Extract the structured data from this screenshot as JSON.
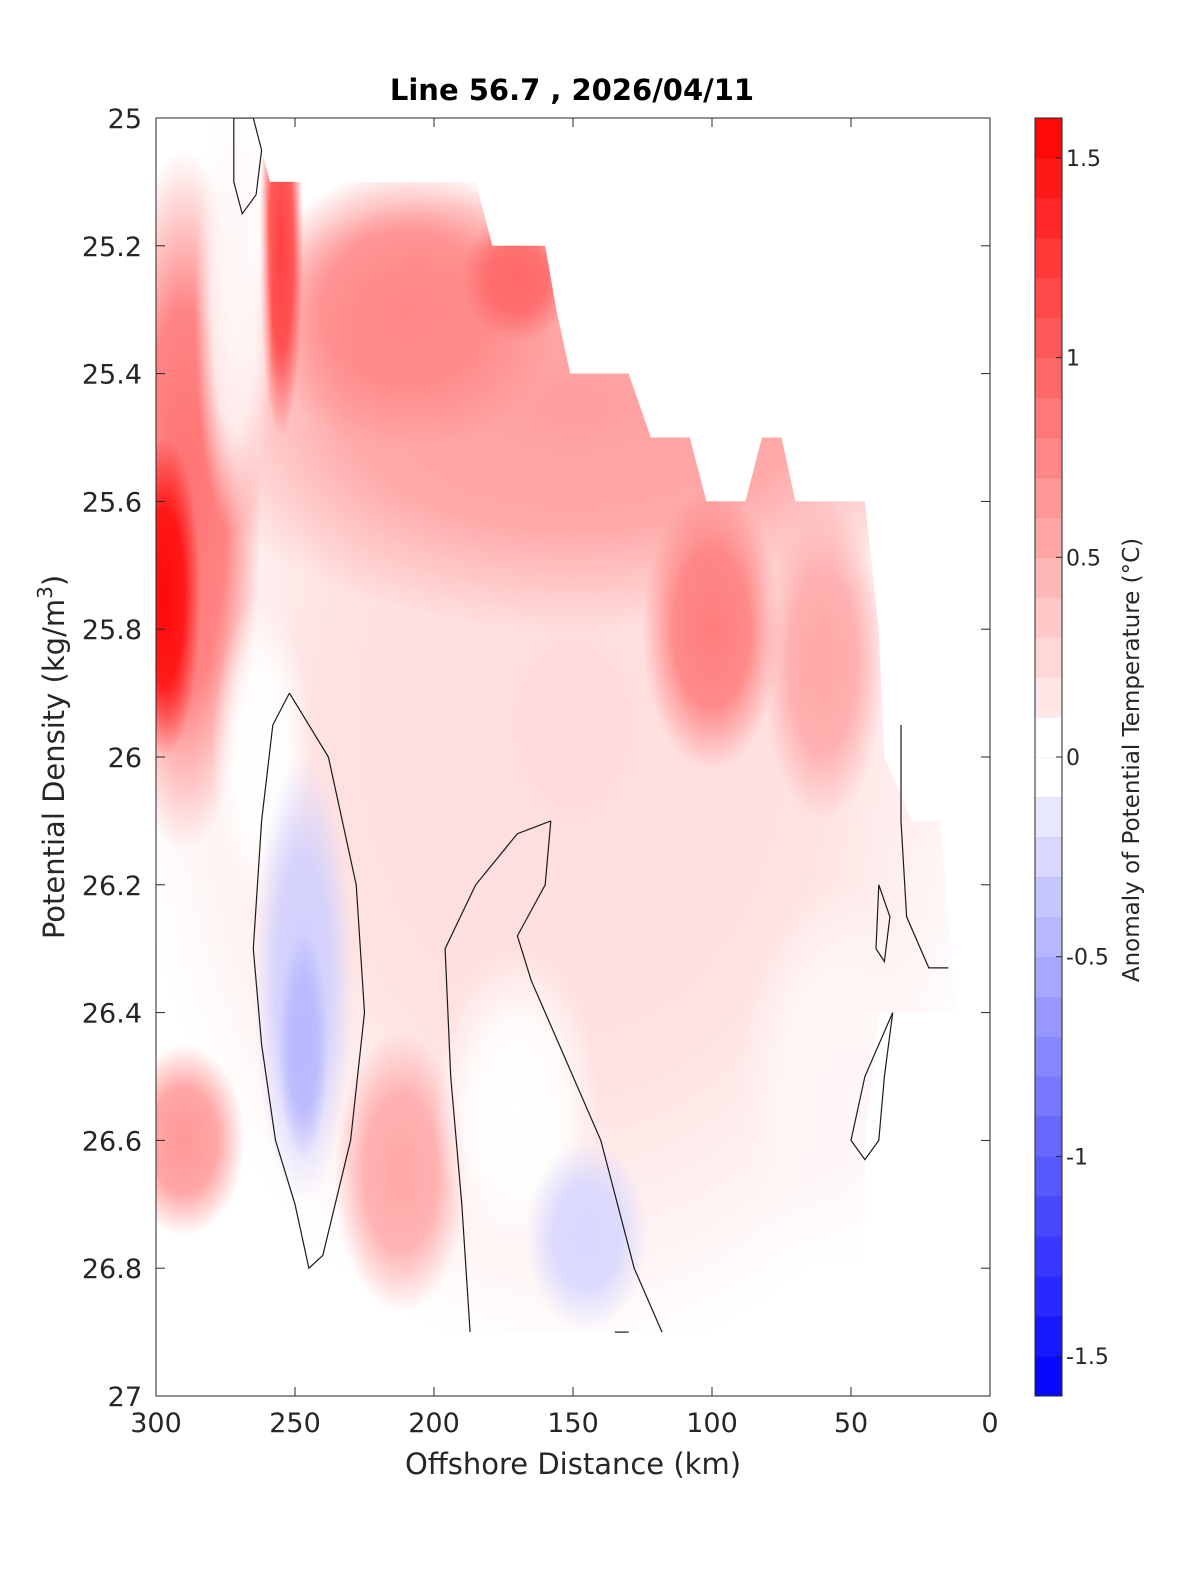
{
  "chart_data": {
    "type": "heatmap",
    "title": "Line 56.7 , 2026/04/11",
    "xlabel": "Offshore Distance (km)",
    "ylabel": "Potential Density (kg/m^3)",
    "ylabel_parts": {
      "main": "Potential Density (kg/m",
      "sup": "3",
      "end": ")"
    },
    "xlim": [
      300,
      0
    ],
    "ylim": [
      27,
      25
    ],
    "x_reversed": true,
    "y_reversed": true,
    "x_ticks": [
      300,
      250,
      200,
      150,
      100,
      50,
      0
    ],
    "y_ticks": [
      25,
      25.2,
      25.4,
      25.6,
      25.8,
      26,
      26.2,
      26.4,
      26.6,
      26.8,
      27
    ],
    "y_tick_labels": [
      "25",
      "25.2",
      "25.4",
      "25.6",
      "25.8",
      "26",
      "26.2",
      "26.4",
      "26.6",
      "26.8",
      "27"
    ],
    "colorbar": {
      "label": "Anomaly of Potential Temperature (°C)",
      "clim": [
        -1.6,
        1.6
      ],
      "step": 0.1,
      "ticks": [
        1.5,
        1,
        0.5,
        0,
        -0.5,
        -1,
        -1.5
      ],
      "tick_labels": [
        "1.5",
        "1",
        "0.5",
        "0",
        "-0.5",
        "-1",
        "-1.5"
      ],
      "cmap_low": "#0000ff",
      "cmap_mid": "#ffffff",
      "cmap_high": "#ff0000"
    },
    "contour_level": 0,
    "grid": false,
    "description_regions": [
      {
        "name": "warm core west",
        "x": 295,
        "y": 25.75,
        "value": 1.55
      },
      {
        "name": "cold core",
        "x": 247,
        "y": 26.45,
        "value": -0.45
      },
      {
        "name": "cold patch",
        "x": 145,
        "y": 26.75,
        "value": -0.25
      },
      {
        "name": "warm subsurface",
        "x": 100,
        "y": 25.75,
        "value": 0.8
      }
    ]
  }
}
